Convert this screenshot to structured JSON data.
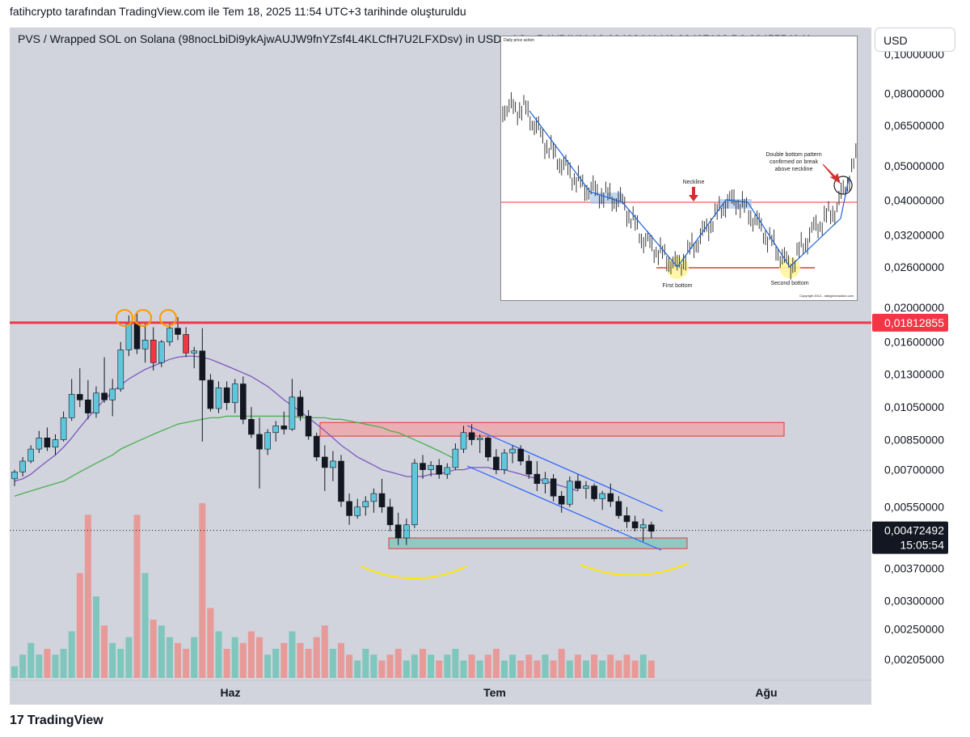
{
  "header": {
    "attribution": "fatihcrypto tarafından TradingView.com ile Tem 18, 2025 11:54 UTC+3 tarihinde oluşturuldu"
  },
  "legend": {
    "symbol_text": "PVS / Wrapped SOL on Solana (98nocLbiDi9ykAjwAUJW9fnYZsf4L4KLCfH7U2LFXDsv) in USD · 1G · RAYDIUM  A0,00463441  Y0,00497102  D0,00455540  K..."
  },
  "currency_button": {
    "label": "USD"
  },
  "brand": {
    "label": "TradingView"
  },
  "price_axis": {
    "tick_labels": [
      "0,08000000",
      "0,06500000",
      "0,05000000",
      "0,04000000",
      "0,03200000",
      "0,02600000",
      "0,02000000",
      "0,01600000",
      "0,01300000",
      "0,01050000",
      "0,00850000",
      "0,00700000",
      "0,00550000",
      "0,00370000",
      "0,00300000",
      "0,00250000",
      "0,00205000"
    ],
    "top_partial": "0,10000000",
    "level_line_label": "0,01812855",
    "last_price_label": "0,00472492",
    "countdown_label": "15:05:54"
  },
  "time_axis": {
    "labels": [
      "Haz",
      "Tem",
      "Ağu"
    ]
  },
  "inset": {
    "annotation_neckline": "Neckline",
    "annotation_confirm": [
      "Double bottom pattern",
      "confirmed on break",
      "above neckline"
    ],
    "label_first_bottom": "First bottom",
    "label_second_bottom": "Second bottom",
    "copyright": "Copyright 2014 - dailypriceaction.com",
    "header_small": "Daily price action"
  },
  "colors": {
    "up_body": "#5fc6dc",
    "down_body": "#131722",
    "highlight_red_candle": "#f23645",
    "level_line": "#f23645",
    "ma_fast": "#7e57c2",
    "ma_slow": "#4caf50",
    "channel": "#2962ff",
    "zone_fill": "#f2a0a6",
    "vol_up": "#7fc6bd",
    "vol_down": "#e79a98",
    "circle": "#ff9800",
    "arc": "#ffe600"
  },
  "chart_data": {
    "type": "candlestick",
    "scale": "log",
    "y_unit": "USD",
    "x_labels": [
      "Haz",
      "Tem",
      "Ağu"
    ],
    "level_line": 0.01812855,
    "last_price": 0.00472492,
    "resistance_zone": [
      0.0087,
      0.0095
    ],
    "support_zone": [
      0.0042,
      0.0045
    ],
    "candles": [
      {
        "o": 0.0066,
        "h": 0.007,
        "l": 0.0063,
        "c": 0.0069
      },
      {
        "o": 0.0069,
        "h": 0.0076,
        "l": 0.0067,
        "c": 0.0074
      },
      {
        "o": 0.0074,
        "h": 0.0082,
        "l": 0.0073,
        "c": 0.008
      },
      {
        "o": 0.008,
        "h": 0.009,
        "l": 0.0078,
        "c": 0.0086
      },
      {
        "o": 0.0086,
        "h": 0.0092,
        "l": 0.0079,
        "c": 0.0081
      },
      {
        "o": 0.0081,
        "h": 0.0088,
        "l": 0.0077,
        "c": 0.0085
      },
      {
        "o": 0.0085,
        "h": 0.0102,
        "l": 0.0084,
        "c": 0.0098
      },
      {
        "o": 0.0098,
        "h": 0.0126,
        "l": 0.0096,
        "c": 0.0114
      },
      {
        "o": 0.0114,
        "h": 0.0135,
        "l": 0.0105,
        "c": 0.011
      },
      {
        "o": 0.011,
        "h": 0.0125,
        "l": 0.0097,
        "c": 0.0101
      },
      {
        "o": 0.0101,
        "h": 0.012,
        "l": 0.0098,
        "c": 0.0115
      },
      {
        "o": 0.0115,
        "h": 0.0145,
        "l": 0.0108,
        "c": 0.011
      },
      {
        "o": 0.011,
        "h": 0.0126,
        "l": 0.0099,
        "c": 0.0118
      },
      {
        "o": 0.0118,
        "h": 0.016,
        "l": 0.0116,
        "c": 0.0152
      },
      {
        "o": 0.0152,
        "h": 0.019,
        "l": 0.0146,
        "c": 0.018
      },
      {
        "o": 0.018,
        "h": 0.0195,
        "l": 0.0148,
        "c": 0.0153
      },
      {
        "o": 0.0153,
        "h": 0.018,
        "l": 0.014,
        "c": 0.0162
      },
      {
        "o": 0.0162,
        "h": 0.0176,
        "l": 0.0133,
        "c": 0.014
      },
      {
        "o": 0.014,
        "h": 0.0162,
        "l": 0.0136,
        "c": 0.016
      },
      {
        "o": 0.016,
        "h": 0.0182,
        "l": 0.0156,
        "c": 0.0175
      },
      {
        "o": 0.0175,
        "h": 0.0188,
        "l": 0.0162,
        "c": 0.0168
      },
      {
        "o": 0.0168,
        "h": 0.0176,
        "l": 0.0145,
        "c": 0.0149
      },
      {
        "o": 0.0149,
        "h": 0.0155,
        "l": 0.0135,
        "c": 0.0151
      },
      {
        "o": 0.0151,
        "h": 0.0175,
        "l": 0.0084,
        "c": 0.0125
      },
      {
        "o": 0.0125,
        "h": 0.013,
        "l": 0.0102,
        "c": 0.0104
      },
      {
        "o": 0.0104,
        "h": 0.0124,
        "l": 0.0101,
        "c": 0.0119
      },
      {
        "o": 0.0119,
        "h": 0.0124,
        "l": 0.0103,
        "c": 0.0108
      },
      {
        "o": 0.0108,
        "h": 0.0126,
        "l": 0.0101,
        "c": 0.0122
      },
      {
        "o": 0.0122,
        "h": 0.0128,
        "l": 0.0094,
        "c": 0.0097
      },
      {
        "o": 0.0097,
        "h": 0.0105,
        "l": 0.0086,
        "c": 0.0088
      },
      {
        "o": 0.0088,
        "h": 0.0098,
        "l": 0.0062,
        "c": 0.008
      },
      {
        "o": 0.008,
        "h": 0.0091,
        "l": 0.0077,
        "c": 0.0089
      },
      {
        "o": 0.0089,
        "h": 0.0096,
        "l": 0.0084,
        "c": 0.0093
      },
      {
        "o": 0.0093,
        "h": 0.0102,
        "l": 0.0088,
        "c": 0.0091
      },
      {
        "o": 0.0091,
        "h": 0.0126,
        "l": 0.009,
        "c": 0.0112
      },
      {
        "o": 0.0112,
        "h": 0.0117,
        "l": 0.0096,
        "c": 0.0099
      },
      {
        "o": 0.0099,
        "h": 0.0103,
        "l": 0.0085,
        "c": 0.0087
      },
      {
        "o": 0.0087,
        "h": 0.0089,
        "l": 0.0074,
        "c": 0.0076
      },
      {
        "o": 0.0076,
        "h": 0.0082,
        "l": 0.0061,
        "c": 0.0071
      },
      {
        "o": 0.0071,
        "h": 0.0079,
        "l": 0.0065,
        "c": 0.0074
      },
      {
        "o": 0.0074,
        "h": 0.0077,
        "l": 0.0055,
        "c": 0.0057
      },
      {
        "o": 0.0057,
        "h": 0.006,
        "l": 0.0049,
        "c": 0.0052
      },
      {
        "o": 0.0052,
        "h": 0.0058,
        "l": 0.0051,
        "c": 0.0055
      },
      {
        "o": 0.0055,
        "h": 0.0059,
        "l": 0.0052,
        "c": 0.0057
      },
      {
        "o": 0.0057,
        "h": 0.0062,
        "l": 0.0053,
        "c": 0.006
      },
      {
        "o": 0.006,
        "h": 0.0066,
        "l": 0.0053,
        "c": 0.0055
      },
      {
        "o": 0.0055,
        "h": 0.0058,
        "l": 0.0047,
        "c": 0.0049
      },
      {
        "o": 0.0049,
        "h": 0.0053,
        "l": 0.0043,
        "c": 0.0045
      },
      {
        "o": 0.0045,
        "h": 0.0051,
        "l": 0.0043,
        "c": 0.0049
      },
      {
        "o": 0.0049,
        "h": 0.0075,
        "l": 0.0048,
        "c": 0.0073
      },
      {
        "o": 0.0073,
        "h": 0.0077,
        "l": 0.0066,
        "c": 0.007
      },
      {
        "o": 0.007,
        "h": 0.0074,
        "l": 0.0067,
        "c": 0.0072
      },
      {
        "o": 0.0072,
        "h": 0.0075,
        "l": 0.0066,
        "c": 0.0068
      },
      {
        "o": 0.0068,
        "h": 0.0073,
        "l": 0.0066,
        "c": 0.0071
      },
      {
        "o": 0.0071,
        "h": 0.0083,
        "l": 0.007,
        "c": 0.008
      },
      {
        "o": 0.008,
        "h": 0.0093,
        "l": 0.0078,
        "c": 0.0089
      },
      {
        "o": 0.0089,
        "h": 0.0094,
        "l": 0.0082,
        "c": 0.0085
      },
      {
        "o": 0.0085,
        "h": 0.0088,
        "l": 0.0078,
        "c": 0.0086
      },
      {
        "o": 0.0086,
        "h": 0.0087,
        "l": 0.0074,
        "c": 0.0076
      },
      {
        "o": 0.0076,
        "h": 0.008,
        "l": 0.0068,
        "c": 0.007
      },
      {
        "o": 0.007,
        "h": 0.008,
        "l": 0.0068,
        "c": 0.0078
      },
      {
        "o": 0.0078,
        "h": 0.0082,
        "l": 0.0073,
        "c": 0.008
      },
      {
        "o": 0.008,
        "h": 0.0082,
        "l": 0.0072,
        "c": 0.0074
      },
      {
        "o": 0.0074,
        "h": 0.0077,
        "l": 0.0066,
        "c": 0.0068
      },
      {
        "o": 0.0068,
        "h": 0.0074,
        "l": 0.0061,
        "c": 0.0064
      },
      {
        "o": 0.0064,
        "h": 0.0069,
        "l": 0.006,
        "c": 0.0066
      },
      {
        "o": 0.0066,
        "h": 0.0068,
        "l": 0.0057,
        "c": 0.0059
      },
      {
        "o": 0.0059,
        "h": 0.0061,
        "l": 0.0053,
        "c": 0.0056
      },
      {
        "o": 0.0056,
        "h": 0.0067,
        "l": 0.0055,
        "c": 0.0065
      },
      {
        "o": 0.0065,
        "h": 0.0068,
        "l": 0.0061,
        "c": 0.0062
      },
      {
        "o": 0.0062,
        "h": 0.0065,
        "l": 0.0058,
        "c": 0.0063
      },
      {
        "o": 0.0063,
        "h": 0.0064,
        "l": 0.0057,
        "c": 0.0058
      },
      {
        "o": 0.0058,
        "h": 0.0061,
        "l": 0.0054,
        "c": 0.006
      },
      {
        "o": 0.006,
        "h": 0.0064,
        "l": 0.0055,
        "c": 0.0057
      },
      {
        "o": 0.0057,
        "h": 0.0059,
        "l": 0.0051,
        "c": 0.0052
      },
      {
        "o": 0.0052,
        "h": 0.0055,
        "l": 0.0048,
        "c": 0.005
      },
      {
        "o": 0.005,
        "h": 0.0052,
        "l": 0.0047,
        "c": 0.0048
      },
      {
        "o": 0.0048,
        "h": 0.0051,
        "l": 0.0044,
        "c": 0.0049
      },
      {
        "o": 0.0049,
        "h": 0.005,
        "l": 0.0045,
        "c": 0.0047
      }
    ],
    "red_highlight_candles": [
      17,
      21
    ],
    "volume": [
      2,
      4,
      6,
      4,
      5,
      4,
      5,
      8,
      18,
      28,
      14,
      9,
      6,
      5,
      7,
      28,
      18,
      10,
      9,
      7,
      6,
      5,
      7,
      30,
      12,
      8,
      5,
      7,
      6,
      8,
      7,
      4,
      5,
      6,
      8,
      6,
      5,
      7,
      9,
      5,
      6,
      4,
      3,
      5,
      4,
      3,
      4,
      5,
      3,
      4,
      5,
      4,
      3,
      4,
      5,
      3,
      4,
      3,
      4,
      5,
      3,
      4,
      3,
      4,
      3,
      4,
      3,
      5,
      3,
      4,
      3,
      4,
      3,
      4,
      3,
      4,
      3,
      4,
      3
    ],
    "series": [
      {
        "name": "MA fast",
        "values": [
          0.0065,
          0.0066,
          0.0068,
          0.0071,
          0.0074,
          0.0077,
          0.0081,
          0.0086,
          0.0092,
          0.0098,
          0.0104,
          0.011,
          0.0116,
          0.0121,
          0.0126,
          0.013,
          0.0134,
          0.0137,
          0.014,
          0.0143,
          0.0145,
          0.0146,
          0.0146,
          0.0145,
          0.0143,
          0.014,
          0.0137,
          0.0134,
          0.0131,
          0.0128,
          0.0124,
          0.012,
          0.0115,
          0.011,
          0.0106,
          0.0102,
          0.0098,
          0.0094,
          0.009,
          0.0086,
          0.0082,
          0.0079,
          0.0076,
          0.0074,
          0.0072,
          0.007,
          0.0069,
          0.0068,
          0.0067,
          0.0067,
          0.0067,
          0.0068,
          0.0068,
          0.0069,
          0.007,
          0.007,
          0.0071,
          0.0071,
          0.0071,
          0.007,
          0.007,
          0.0069,
          0.0068,
          0.0067,
          0.0066,
          0.0065,
          0.0064,
          0.0063,
          0.0062,
          0.0061
        ]
      },
      {
        "name": "MA slow",
        "values": [
          0.0059,
          0.006,
          0.0061,
          0.0062,
          0.0063,
          0.0064,
          0.0065,
          0.0067,
          0.0069,
          0.0071,
          0.0073,
          0.0075,
          0.0077,
          0.008,
          0.0082,
          0.0084,
          0.0086,
          0.0088,
          0.009,
          0.0092,
          0.0094,
          0.0095,
          0.0096,
          0.0097,
          0.0098,
          0.0098,
          0.0099,
          0.0099,
          0.0099,
          0.0099,
          0.0099,
          0.0099,
          0.0099,
          0.0099,
          0.0099,
          0.0098,
          0.0098,
          0.0098,
          0.0098,
          0.0097,
          0.0097,
          0.0096,
          0.0095,
          0.0094,
          0.0093,
          0.0092,
          0.009,
          0.0089,
          0.0087,
          0.0085,
          0.0083,
          0.0081,
          0.0079,
          0.0077,
          0.0075
        ]
      }
    ]
  }
}
